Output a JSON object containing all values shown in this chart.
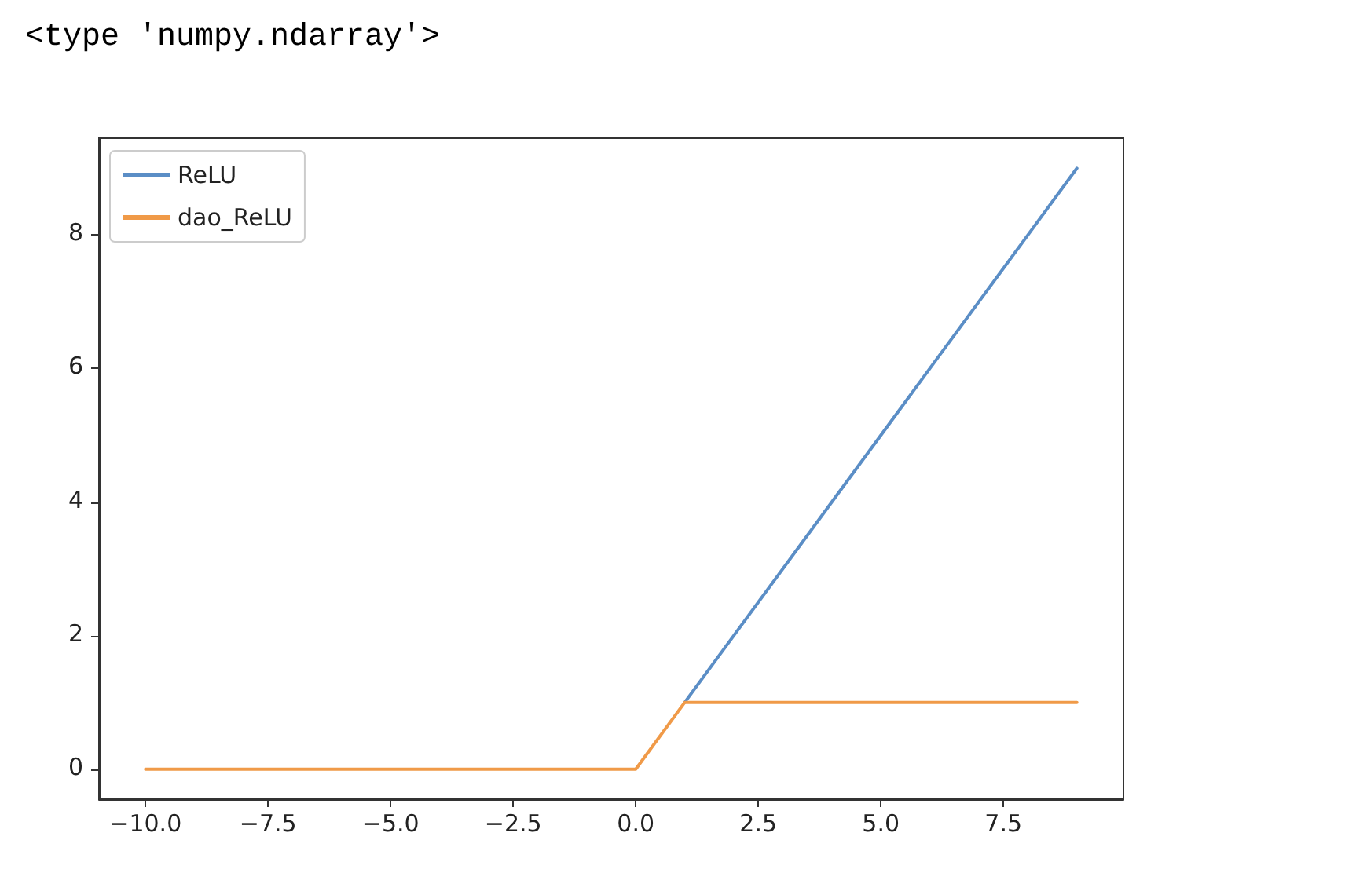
{
  "chart_data": {
    "type": "line",
    "annotations": [
      "<type 'numpy.ndarray'>"
    ],
    "x": [
      -10,
      -9,
      -8,
      -7,
      -6,
      -5,
      -4,
      -3,
      -2,
      -1,
      0,
      1,
      2,
      3,
      4,
      5,
      6,
      7,
      8,
      9
    ],
    "series": [
      {
        "name": "ReLU",
        "color": "#5b8ec6",
        "values": [
          null,
          null,
          null,
          null,
          null,
          null,
          null,
          null,
          null,
          null,
          null,
          1,
          2,
          3,
          4,
          5,
          6,
          7,
          8,
          9
        ]
      },
      {
        "name": "dao_ReLU",
        "color": "#f09a48",
        "values": [
          0,
          0,
          0,
          0,
          0,
          0,
          0,
          0,
          0,
          0,
          0,
          1,
          1,
          1,
          1,
          1,
          1,
          1,
          1,
          1
        ]
      }
    ],
    "xlim": [
      -10.95,
      9.95
    ],
    "xticks": [
      {
        "value": -10,
        "label": "−10.0"
      },
      {
        "value": -7.5,
        "label": "−7.5"
      },
      {
        "value": -5,
        "label": "−5.0"
      },
      {
        "value": -2.5,
        "label": "−2.5"
      },
      {
        "value": 0,
        "label": "0.0"
      },
      {
        "value": 2.5,
        "label": "2.5"
      },
      {
        "value": 5,
        "label": "5.0"
      },
      {
        "value": 7.5,
        "label": "7.5"
      }
    ],
    "ylim": [
      -0.45,
      9.45
    ],
    "yticks": [
      0,
      2,
      4,
      6,
      8
    ],
    "legend": "top left",
    "grid": false,
    "marker": "none",
    "line_style": "solid"
  }
}
